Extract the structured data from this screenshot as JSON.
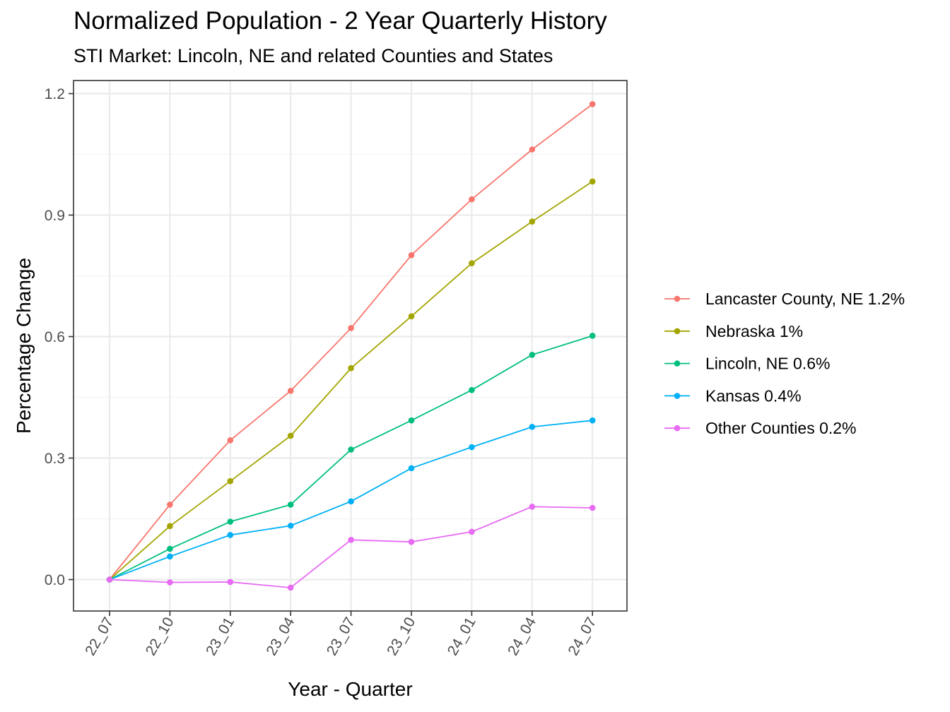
{
  "chart_data": {
    "type": "line",
    "title": "Normalized Population - 2 Year Quarterly History",
    "subtitle": "STI Market: Lincoln, NE and related Counties and States",
    "xlabel": "Year - Quarter",
    "ylabel": "Percentage Change",
    "categories": [
      "22_07",
      "22_10",
      "23_01",
      "23_04",
      "23_07",
      "23_10",
      "24_01",
      "24_04",
      "24_07"
    ],
    "ylim": [
      -0.08,
      1.23
    ],
    "yticks": [
      "0.0",
      "0.3",
      "0.6",
      "0.9",
      "1.2"
    ],
    "ytick_values": [
      0.0,
      0.3,
      0.6,
      0.9,
      1.2
    ],
    "grid": true,
    "legend_position": "right",
    "series": [
      {
        "name": "Lancaster County, NE 1.2%",
        "color": "#F8766D",
        "values": [
          0.0,
          0.185,
          0.344,
          0.466,
          0.621,
          0.801,
          0.939,
          1.062,
          1.174
        ]
      },
      {
        "name": "Nebraska 1%",
        "color": "#A3A500",
        "values": [
          0.0,
          0.132,
          0.243,
          0.355,
          0.522,
          0.65,
          0.781,
          0.884,
          0.983
        ]
      },
      {
        "name": "Lincoln, NE 0.6%",
        "color": "#00BF7D",
        "values": [
          0.0,
          0.076,
          0.143,
          0.185,
          0.321,
          0.393,
          0.468,
          0.555,
          0.602
        ]
      },
      {
        "name": "Kansas 0.4%",
        "color": "#00B0F6",
        "values": [
          0.0,
          0.057,
          0.11,
          0.133,
          0.193,
          0.275,
          0.327,
          0.377,
          0.393
        ]
      },
      {
        "name": "Other Counties 0.2%",
        "color": "#E76BF3",
        "values": [
          0.0,
          -0.007,
          -0.006,
          -0.02,
          0.098,
          0.093,
          0.118,
          0.18,
          0.177
        ]
      }
    ]
  }
}
